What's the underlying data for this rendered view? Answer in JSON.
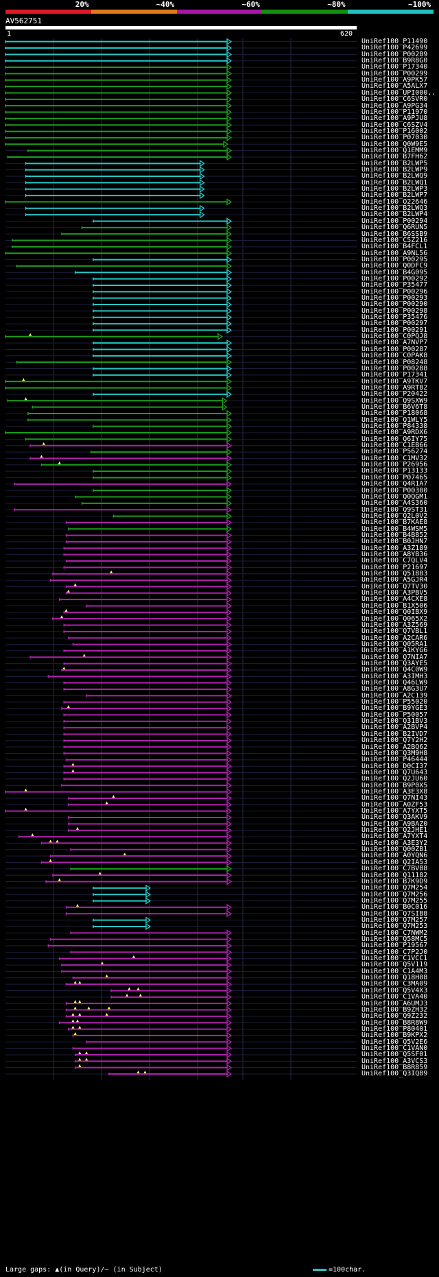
{
  "legend": {
    "segments": [
      {
        "label": "20%",
        "color": "#e01828"
      },
      {
        "label": "~40%",
        "color": "#e07a18"
      },
      {
        "label": "~60%",
        "color": "#a818a8"
      },
      {
        "label": "~80%",
        "color": "#119011"
      },
      {
        "label": "~100%",
        "color": "#22c0c0"
      }
    ]
  },
  "query": {
    "id": "AV562751",
    "start": "1",
    "end": "620"
  },
  "colors": {
    "cyan": "#22c9c9",
    "green": "#19a019",
    "magenta": "#b020b0",
    "gridline": "#2a2a44",
    "rowline": "#1e1e3c",
    "gap": "#ffff66"
  },
  "hits": [
    {
      "id": "UniRef100_P11490",
      "c": "cyan",
      "s": 0,
      "e": 1
    },
    {
      "id": "UniRef100_P42699",
      "c": "cyan",
      "s": 0,
      "e": 1
    },
    {
      "id": "UniRef100_P00289",
      "c": "cyan",
      "s": 0,
      "e": 1
    },
    {
      "id": "UniRef100_B9R8G0",
      "c": "cyan",
      "s": 0,
      "e": 1
    },
    {
      "id": "UniRef100_P17340",
      "c": "green",
      "s": 0,
      "e": 1
    },
    {
      "id": "UniRef100_P00299",
      "c": "green",
      "s": 0,
      "e": 1
    },
    {
      "id": "UniRef100_A9PK57",
      "c": "green",
      "s": 0,
      "e": 1
    },
    {
      "id": "UniRef100_A5ALX7",
      "c": "green",
      "s": 0,
      "e": 1
    },
    {
      "id": "UniRef100_UPI000..",
      "c": "green",
      "s": 0,
      "e": 1
    },
    {
      "id": "UniRef100_C6SVR0",
      "c": "green",
      "s": 0,
      "e": 1
    },
    {
      "id": "UniRef100_A9PG34",
      "c": "green",
      "s": 0,
      "e": 1
    },
    {
      "id": "UniRef100_P11970",
      "c": "green",
      "s": 0,
      "e": 1
    },
    {
      "id": "UniRef100_A9PJU8",
      "c": "green",
      "s": 0,
      "e": 1
    },
    {
      "id": "UniRef100_C6SZV4",
      "c": "green",
      "s": 0,
      "e": 1
    },
    {
      "id": "UniRef100_P16002",
      "c": "green",
      "s": 0,
      "e": 1
    },
    {
      "id": "UniRef100_P07030",
      "c": "green",
      "s": 0,
      "e": 1
    },
    {
      "id": "UniRef100_Q0W9E5",
      "c": "green",
      "s": 0,
      "e": 0.985
    },
    {
      "id": "UniRef100_Q1EMM9",
      "c": "green",
      "s": 0.1,
      "e": 1
    },
    {
      "id": "UniRef100_B7FH62",
      "c": "green",
      "s": 0.01,
      "e": 1
    },
    {
      "id": "UniRef100_B2LWP5",
      "c": "cyan",
      "s": 0.09,
      "e": 0.88
    },
    {
      "id": "UniRef100_B2LWP9",
      "c": "cyan",
      "s": 0.09,
      "e": 0.88
    },
    {
      "id": "UniRef100_B2LWQ9",
      "c": "cyan",
      "s": 0.09,
      "e": 0.88
    },
    {
      "id": "UniRef100_B2LWQ1",
      "c": "cyan",
      "s": 0.09,
      "e": 0.88
    },
    {
      "id": "UniRef100_B2LWP3",
      "c": "cyan",
      "s": 0.09,
      "e": 0.88
    },
    {
      "id": "UniRef100_B2LWP7",
      "c": "cyan",
      "s": 0.09,
      "e": 0.88
    },
    {
      "id": "UniRef100_O22646",
      "c": "green",
      "s": 0,
      "e": 1
    },
    {
      "id": "UniRef100_B2LWQ3",
      "c": "cyan",
      "s": 0.09,
      "e": 0.88
    },
    {
      "id": "UniRef100_B2LWP4",
      "c": "cyan",
      "s": 0.09,
      "e": 0.88
    },
    {
      "id": "UniRef100_P00294",
      "c": "cyan",
      "s": 0.39,
      "e": 1
    },
    {
      "id": "UniRef100_Q6RUN5",
      "c": "green",
      "s": 0.34,
      "e": 1
    },
    {
      "id": "UniRef100_B6SSB9",
      "c": "green",
      "s": 0.25,
      "e": 1
    },
    {
      "id": "UniRef100_C5Z216",
      "c": "green",
      "s": 0.03,
      "e": 1
    },
    {
      "id": "UniRef100_B4FCL1",
      "c": "green",
      "s": 0.03,
      "e": 1
    },
    {
      "id": "UniRef100_A9NL56",
      "c": "green",
      "s": 0,
      "e": 1
    },
    {
      "id": "UniRef100_P00295",
      "c": "cyan",
      "s": 0.39,
      "e": 1
    },
    {
      "id": "UniRef100_Q0DFC9",
      "c": "green",
      "s": 0.05,
      "e": 1
    },
    {
      "id": "UniRef100_B4G095",
      "c": "cyan",
      "s": 0.31,
      "e": 1
    },
    {
      "id": "UniRef100_P00292",
      "c": "cyan",
      "s": 0.39,
      "e": 1
    },
    {
      "id": "UniRef100_P35477",
      "c": "cyan",
      "s": 0.39,
      "e": 1
    },
    {
      "id": "UniRef100_P00296",
      "c": "cyan",
      "s": 0.39,
      "e": 1
    },
    {
      "id": "UniRef100_P00293",
      "c": "cyan",
      "s": 0.39,
      "e": 1
    },
    {
      "id": "UniRef100_P00290",
      "c": "cyan",
      "s": 0.39,
      "e": 1
    },
    {
      "id": "UniRef100_P00298",
      "c": "cyan",
      "s": 0.39,
      "e": 1
    },
    {
      "id": "UniRef100_P35476",
      "c": "cyan",
      "s": 0.39,
      "e": 1
    },
    {
      "id": "UniRef100_P00297",
      "c": "cyan",
      "s": 0.39,
      "e": 1
    },
    {
      "id": "UniRef100_P00291",
      "c": "cyan",
      "s": 0.39,
      "e": 1
    },
    {
      "id": "UniRef100_C0PQJ8",
      "c": "green",
      "s": 0,
      "e": 0.96,
      "g": [
        0.11
      ]
    },
    {
      "id": "UniRef100_A7NVP7",
      "c": "cyan",
      "s": 0.39,
      "e": 1
    },
    {
      "id": "UniRef100_P00287",
      "c": "cyan",
      "s": 0.39,
      "e": 1
    },
    {
      "id": "UniRef100_C0PAK8",
      "c": "cyan",
      "s": 0.39,
      "e": 1
    },
    {
      "id": "UniRef100_P08248",
      "c": "green",
      "s": 0.05,
      "e": 1
    },
    {
      "id": "UniRef100_P00288",
      "c": "cyan",
      "s": 0.39,
      "e": 1
    },
    {
      "id": "UniRef100_P17341",
      "c": "cyan",
      "s": 0.39,
      "e": 1
    },
    {
      "id": "UniRef100_A9TKV7",
      "c": "green",
      "s": 0,
      "e": 1,
      "g": [
        0.08
      ]
    },
    {
      "id": "UniRef100_A9RT82",
      "c": "green",
      "s": 0,
      "e": 1
    },
    {
      "id": "UniRef100_P20422",
      "c": "cyan",
      "s": 0.39,
      "e": 1
    },
    {
      "id": "UniRef100_Q9SXW9",
      "c": "green",
      "s": 0.01,
      "e": 0.98,
      "g": [
        0.09
      ]
    },
    {
      "id": "UniRef100_B6V6T8",
      "c": "green",
      "s": 0.12,
      "e": 0.98
    },
    {
      "id": "UniRef100_P18068",
      "c": "green",
      "s": 0.1,
      "e": 1
    },
    {
      "id": "UniRef100_Q1WLY5",
      "c": "green",
      "s": 0.1,
      "e": 1
    },
    {
      "id": "UniRef100_P84338",
      "c": "green",
      "s": 0.39,
      "e": 1
    },
    {
      "id": "UniRef100_A9RDX6",
      "c": "green",
      "s": 0,
      "e": 1
    },
    {
      "id": "UniRef100_Q6IY75",
      "c": "green",
      "s": 0.09,
      "e": 1
    },
    {
      "id": "UniRef100_C1EB66",
      "c": "magenta",
      "s": 0.11,
      "e": 1,
      "g": [
        0.17
      ]
    },
    {
      "id": "UniRef100_P56274",
      "c": "green",
      "s": 0.38,
      "e": 1
    },
    {
      "id": "UniRef100_C1MV32",
      "c": "magenta",
      "s": 0.11,
      "e": 1,
      "g": [
        0.16
      ]
    },
    {
      "id": "UniRef100_P26956",
      "c": "green",
      "s": 0.16,
      "e": 1,
      "g": [
        0.24
      ]
    },
    {
      "id": "UniRef100_P13133",
      "c": "green",
      "s": 0.39,
      "e": 1
    },
    {
      "id": "UniRef100_P07465",
      "c": "green",
      "s": 0.39,
      "e": 1
    },
    {
      "id": "UniRef100_Q4R1A7",
      "c": "magenta",
      "s": 0.04,
      "e": 1
    },
    {
      "id": "UniRef100_P00300",
      "c": "green",
      "s": 0.39,
      "e": 1
    },
    {
      "id": "UniRef100_Q0QGM1",
      "c": "green",
      "s": 0.31,
      "e": 1
    },
    {
      "id": "UniRef100_A4S360",
      "c": "green",
      "s": 0.34,
      "e": 1
    },
    {
      "id": "UniRef100_Q9ST31",
      "c": "magenta",
      "s": 0.04,
      "e": 1
    },
    {
      "id": "UniRef100_Q2L0V2",
      "c": "green",
      "s": 0.48,
      "e": 1
    },
    {
      "id": "UniRef100_B7KAE8",
      "c": "magenta",
      "s": 0.27,
      "e": 1
    },
    {
      "id": "UniRef100_B4WSM5",
      "c": "green",
      "s": 0.28,
      "e": 1
    },
    {
      "id": "UniRef100_B4B852",
      "c": "magenta",
      "s": 0.27,
      "e": 1
    },
    {
      "id": "UniRef100_B0JHN7",
      "c": "magenta",
      "s": 0.27,
      "e": 1
    },
    {
      "id": "UniRef100_A3Z189",
      "c": "magenta",
      "s": 0.26,
      "e": 1
    },
    {
      "id": "UniRef100_A8YB36",
      "c": "magenta",
      "s": 0.26,
      "e": 1
    },
    {
      "id": "UniRef100_C7QLV4",
      "c": "magenta",
      "s": 0.27,
      "e": 1
    },
    {
      "id": "UniRef100_P21697",
      "c": "magenta",
      "s": 0.26,
      "e": 1
    },
    {
      "id": "UniRef100_Q51883",
      "c": "magenta",
      "s": 0.21,
      "e": 1,
      "g": [
        0.47
      ]
    },
    {
      "id": "UniRef100_A5GJR4",
      "c": "magenta",
      "s": 0.2,
      "e": 1
    },
    {
      "id": "UniRef100_Q7TV30",
      "c": "magenta",
      "s": 0.27,
      "e": 1,
      "g": [
        0.31
      ]
    },
    {
      "id": "UniRef100_A3PBV5",
      "c": "magenta",
      "s": 0.27,
      "e": 1,
      "g": [
        0.28
      ]
    },
    {
      "id": "UniRef100_A4CXE8",
      "c": "magenta",
      "s": 0.24,
      "e": 1
    },
    {
      "id": "UniRef100_B1X506",
      "c": "magenta",
      "s": 0.36,
      "e": 1
    },
    {
      "id": "UniRef100_Q0IBX9",
      "c": "magenta",
      "s": 0.26,
      "e": 1,
      "g": [
        0.27
      ]
    },
    {
      "id": "UniRef100_Q065X2",
      "c": "magenta",
      "s": 0.21,
      "e": 1,
      "g": [
        0.25
      ]
    },
    {
      "id": "UniRef100_A3Z569",
      "c": "magenta",
      "s": 0.26,
      "e": 1
    },
    {
      "id": "UniRef100_Q7VBL1",
      "c": "magenta",
      "s": 0.26,
      "e": 1
    },
    {
      "id": "UniRef100_A2CAR6",
      "c": "magenta",
      "s": 0.28,
      "e": 1
    },
    {
      "id": "UniRef100_Q05RA1",
      "c": "magenta",
      "s": 0.3,
      "e": 1
    },
    {
      "id": "UniRef100_A1KYG6",
      "c": "magenta",
      "s": 0.26,
      "e": 1
    },
    {
      "id": "UniRef100_Q7NIA7",
      "c": "magenta",
      "s": 0.11,
      "e": 1,
      "g": [
        0.35
      ]
    },
    {
      "id": "UniRef100_Q3AYE5",
      "c": "magenta",
      "s": 0.26,
      "e": 1
    },
    {
      "id": "UniRef100_Q4C0W9",
      "c": "magenta",
      "s": 0.25,
      "e": 1,
      "g": [
        0.26
      ]
    },
    {
      "id": "UniRef100_A3IMH3",
      "c": "magenta",
      "s": 0.19,
      "e": 1
    },
    {
      "id": "UniRef100_Q46LW9",
      "c": "magenta",
      "s": 0.26,
      "e": 1
    },
    {
      "id": "UniRef100_A8G3U7",
      "c": "magenta",
      "s": 0.26,
      "e": 1
    },
    {
      "id": "UniRef100_A2C139",
      "c": "magenta",
      "s": 0.36,
      "e": 1
    },
    {
      "id": "UniRef100_P55020",
      "c": "magenta",
      "s": 0.26,
      "e": 1
    },
    {
      "id": "UniRef100_B9YGE3",
      "c": "magenta",
      "s": 0.25,
      "e": 1,
      "g": [
        0.28
      ]
    },
    {
      "id": "UniRef100_P50057",
      "c": "magenta",
      "s": 0.26,
      "e": 1
    },
    {
      "id": "UniRef100_Q31BV3",
      "c": "magenta",
      "s": 0.26,
      "e": 1
    },
    {
      "id": "UniRef100_A2BVP4",
      "c": "magenta",
      "s": 0.26,
      "e": 1
    },
    {
      "id": "UniRef100_B2IVD7",
      "c": "magenta",
      "s": 0.26,
      "e": 1
    },
    {
      "id": "UniRef100_Q7Y2H2",
      "c": "magenta",
      "s": 0.26,
      "e": 1
    },
    {
      "id": "UniRef100_A2BQ62",
      "c": "magenta",
      "s": 0.26,
      "e": 1
    },
    {
      "id": "UniRef100_Q3M9H8",
      "c": "magenta",
      "s": 0.26,
      "e": 1
    },
    {
      "id": "UniRef100_P46444",
      "c": "magenta",
      "s": 0.27,
      "e": 1
    },
    {
      "id": "UniRef100_D0CI37",
      "c": "magenta",
      "s": 0.26,
      "e": 1,
      "g": [
        0.3
      ]
    },
    {
      "id": "UniRef100_Q7U643",
      "c": "magenta",
      "s": 0.26,
      "e": 1,
      "g": [
        0.3
      ]
    },
    {
      "id": "UniRef100_Q2JU60",
      "c": "magenta",
      "s": 0.26,
      "e": 1
    },
    {
      "id": "UniRef100_B9P0X5",
      "c": "magenta",
      "s": 0.25,
      "e": 1
    },
    {
      "id": "UniRef100_A3E3X8",
      "c": "magenta",
      "s": 0,
      "e": 1,
      "g": [
        0.09
      ]
    },
    {
      "id": "UniRef100_Q7NI43",
      "c": "magenta",
      "s": 0.28,
      "e": 1,
      "g": [
        0.48
      ]
    },
    {
      "id": "UniRef100_A0ZF53",
      "c": "magenta",
      "s": 0.28,
      "e": 1,
      "g": [
        0.45
      ]
    },
    {
      "id": "UniRef100_A7YXT5",
      "c": "magenta",
      "s": 0,
      "e": 1,
      "g": [
        0.09
      ]
    },
    {
      "id": "UniRef100_Q3AKV9",
      "c": "magenta",
      "s": 0.28,
      "e": 1
    },
    {
      "id": "UniRef100_A9BAZ0",
      "c": "magenta",
      "s": 0.28,
      "e": 1
    },
    {
      "id": "UniRef100_Q2JHE1",
      "c": "magenta",
      "s": 0.28,
      "e": 1,
      "g": [
        0.32
      ]
    },
    {
      "id": "UniRef100_A7YXT4",
      "c": "magenta",
      "s": 0.06,
      "e": 1,
      "g": [
        0.12
      ]
    },
    {
      "id": "UniRef100_A3E3Y2",
      "c": "magenta",
      "s": 0.16,
      "e": 1,
      "g": [
        0.2,
        0.23
      ]
    },
    {
      "id": "UniRef100_Q00ZB1",
      "c": "magenta",
      "s": 0.29,
      "e": 1
    },
    {
      "id": "UniRef100_A0YQN6",
      "c": "magenta",
      "s": 0.2,
      "e": 1,
      "g": [
        0.53
      ]
    },
    {
      "id": "UniRef100_Q2IA53",
      "c": "magenta",
      "s": 0.16,
      "e": 1,
      "g": [
        0.2
      ]
    },
    {
      "id": "UniRef100_C7BV88",
      "c": "green",
      "s": 0.29,
      "e": 1
    },
    {
      "id": "UniRef100_Q11182",
      "c": "magenta",
      "s": 0.21,
      "e": 1,
      "g": [
        0.42
      ]
    },
    {
      "id": "UniRef100_B7K9D9",
      "c": "magenta",
      "s": 0.18,
      "e": 1,
      "g": [
        0.24
      ]
    },
    {
      "id": "UniRef100_Q7M254",
      "c": "cyan",
      "s": 0.39,
      "e": 0.64
    },
    {
      "id": "UniRef100_Q7M256",
      "c": "cyan",
      "s": 0.39,
      "e": 0.64
    },
    {
      "id": "UniRef100_Q7M255",
      "c": "cyan",
      "s": 0.39,
      "e": 0.64
    },
    {
      "id": "UniRef100_B0C016",
      "c": "magenta",
      "s": 0.27,
      "e": 1,
      "g": [
        0.32
      ]
    },
    {
      "id": "UniRef100_Q7SIB8",
      "c": "magenta",
      "s": 0.27,
      "e": 1
    },
    {
      "id": "UniRef100_Q7M257",
      "c": "cyan",
      "s": 0.39,
      "e": 0.64
    },
    {
      "id": "UniRef100_Q7M253",
      "c": "cyan",
      "s": 0.39,
      "e": 0.64
    },
    {
      "id": "UniRef100_C7NWM2",
      "c": "magenta",
      "s": 0.29,
      "e": 1
    },
    {
      "id": "UniRef100_Q58MC5",
      "c": "magenta",
      "s": 0.2,
      "e": 1
    },
    {
      "id": "UniRef100_P19567",
      "c": "magenta",
      "s": 0.19,
      "e": 1
    },
    {
      "id": "UniRef100_C7P2J0",
      "c": "magenta",
      "s": 0.29,
      "e": 1
    },
    {
      "id": "UniRef100_C1VCC1",
      "c": "magenta",
      "s": 0.24,
      "e": 1,
      "g": [
        0.57
      ]
    },
    {
      "id": "UniRef100_Q5V119",
      "c": "magenta",
      "s": 0.25,
      "e": 1,
      "g": [
        0.43
      ]
    },
    {
      "id": "UniRef100_C1A4M3",
      "c": "magenta",
      "s": 0.25,
      "e": 1
    },
    {
      "id": "UniRef100_Q18H08",
      "c": "magenta",
      "s": 0.3,
      "e": 1,
      "g": [
        0.45
      ]
    },
    {
      "id": "UniRef100_C3MA09",
      "c": "magenta",
      "s": 0.27,
      "e": 1,
      "g": [
        0.31,
        0.33
      ]
    },
    {
      "id": "UniRef100_Q5V4X3",
      "c": "magenta",
      "s": 0.47,
      "e": 1,
      "g": [
        0.55,
        0.59
      ]
    },
    {
      "id": "UniRef100_C1VA40",
      "c": "magenta",
      "s": 0.47,
      "e": 1,
      "g": [
        0.54,
        0.6
      ]
    },
    {
      "id": "UniRef100_A6UMJ3",
      "c": "magenta",
      "s": 0.27,
      "e": 1,
      "g": [
        0.31,
        0.33
      ]
    },
    {
      "id": "UniRef100_B9ZH32",
      "c": "magenta",
      "s": 0.27,
      "e": 1,
      "g": [
        0.31,
        0.37,
        0.46
      ]
    },
    {
      "id": "UniRef100_Q9Z232",
      "c": "magenta",
      "s": 0.27,
      "e": 1,
      "g": [
        0.3,
        0.33,
        0.45
      ]
    },
    {
      "id": "UniRef100_B8R8W9",
      "c": "magenta",
      "s": 0.24,
      "e": 1,
      "g": [
        0.3,
        0.32
      ]
    },
    {
      "id": "UniRef100_P80401",
      "c": "magenta",
      "s": 0.28,
      "e": 1,
      "g": [
        0.3,
        0.33
      ]
    },
    {
      "id": "UniRef100_B9KPX2",
      "c": "magenta",
      "s": 0.3,
      "e": 1,
      "g": [
        0.31
      ]
    },
    {
      "id": "UniRef100_Q5V2E6",
      "c": "magenta",
      "s": 0.36,
      "e": 1
    },
    {
      "id": "UniRef100_C1VAN0",
      "c": "magenta",
      "s": 0.3,
      "e": 1
    },
    {
      "id": "UniRef100_Q5SF01",
      "c": "magenta",
      "s": 0.31,
      "e": 1,
      "g": [
        0.33,
        0.36
      ]
    },
    {
      "id": "UniRef100_A3VCS3",
      "c": "magenta",
      "s": 0.31,
      "e": 1,
      "g": [
        0.33,
        0.36
      ]
    },
    {
      "id": "UniRef100_B8R859",
      "c": "magenta",
      "s": 0.31,
      "e": 1,
      "g": [
        0.33
      ]
    },
    {
      "id": "UniRef100_Q3IQ89",
      "c": "magenta",
      "s": 0.46,
      "e": 1,
      "g": [
        0.59,
        0.62
      ]
    }
  ],
  "footer": {
    "text": "Large gaps: ▲(in Query)/– (in Subject)",
    "scale_label": "=100char."
  }
}
